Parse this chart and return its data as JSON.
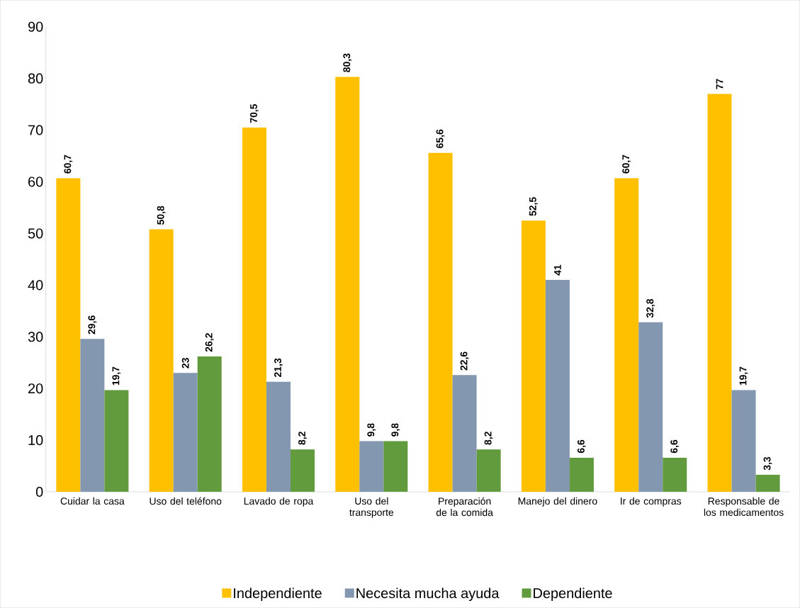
{
  "chart_data": {
    "type": "bar",
    "categories": [
      "Cuidar la casa",
      "Uso del teléfono",
      "Lavado de ropa",
      "Uso del transporte",
      "Preparación de la comida",
      "Manejo del dinero",
      "Ir de compras",
      "Responsable de los medicamentos"
    ],
    "series": [
      {
        "name": "Independiente",
        "color": "#ffc000",
        "values": [
          60.7,
          50.8,
          70.5,
          80.3,
          65.6,
          52.5,
          60.7,
          77
        ],
        "value_labels": [
          "60,7",
          "50,8",
          "70,5",
          "80,3",
          "65,6",
          "52,5",
          "60,7",
          "77"
        ]
      },
      {
        "name": "Necesita mucha ayuda",
        "color": "#8497b0",
        "values": [
          29.6,
          23,
          21.3,
          9.8,
          22.6,
          41,
          32.8,
          19.7
        ],
        "value_labels": [
          "29,6",
          "23",
          "21,3",
          "9,8",
          "22,6",
          "41",
          "32,8",
          "19,7"
        ]
      },
      {
        "name": "Dependiente",
        "color": "#629b3d",
        "values": [
          19.7,
          26.2,
          8.2,
          9.8,
          8.2,
          6.6,
          6.6,
          3.3
        ],
        "value_labels": [
          "19,7",
          "26,2",
          "8,2",
          "9,8",
          "8,2",
          "6,6",
          "6,6",
          "3,3"
        ]
      }
    ],
    "ylim": [
      0,
      90
    ],
    "yticks": [
      0,
      10,
      20,
      30,
      40,
      50,
      60,
      70,
      80,
      90
    ],
    "legend": "bottom"
  }
}
